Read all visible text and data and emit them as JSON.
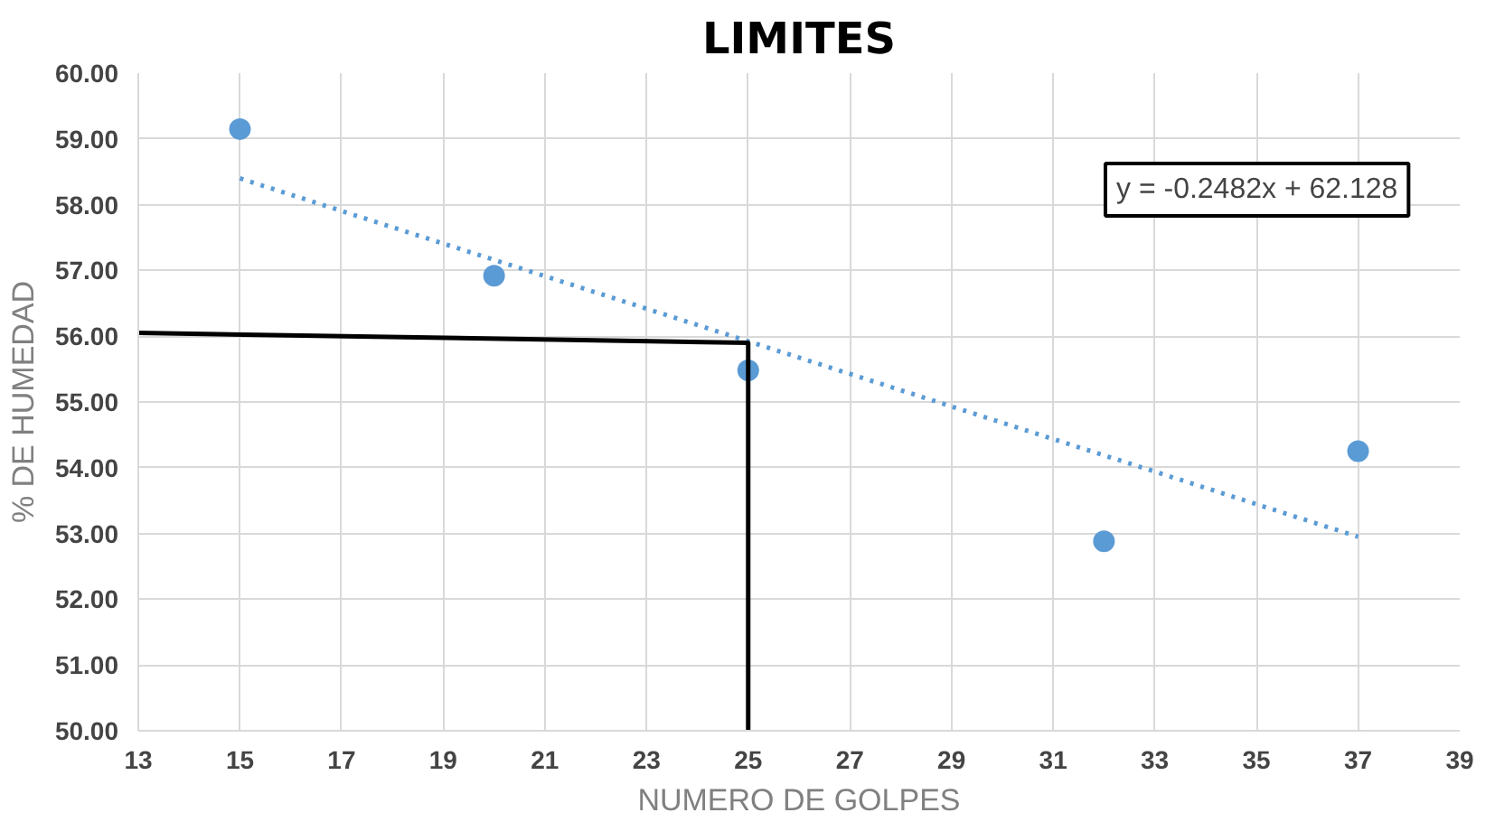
{
  "chart_data": {
    "type": "scatter",
    "title": "LIMITES",
    "xlabel": "NUMERO DE GOLPES",
    "ylabel": "% DE HUMEDAD",
    "xlim": [
      13,
      39
    ],
    "xticks": [
      13,
      15,
      17,
      19,
      21,
      23,
      25,
      27,
      29,
      31,
      33,
      35,
      37,
      39
    ],
    "ylim": [
      50,
      60
    ],
    "yticks": [
      {
        "value": 50,
        "label": "50.00"
      },
      {
        "value": 51,
        "label": "51.00"
      },
      {
        "value": 52,
        "label": "52.00"
      },
      {
        "value": 53,
        "label": "53.00"
      },
      {
        "value": 54,
        "label": "54.00"
      },
      {
        "value": 55,
        "label": "55.00"
      },
      {
        "value": 56,
        "label": "56.00"
      },
      {
        "value": 57,
        "label": "57.00"
      },
      {
        "value": 58,
        "label": "58.00"
      },
      {
        "value": 59,
        "label": "59.00"
      },
      {
        "value": 60,
        "label": "60.00"
      }
    ],
    "grid": true,
    "series": [
      {
        "marker": "circle",
        "color": "#5b9bd5",
        "x": [
          15,
          20,
          25,
          32,
          37
        ],
        "values": [
          59.15,
          56.92,
          55.48,
          52.88,
          54.25
        ]
      },
      {
        "type": "line",
        "marker": "none",
        "line_style": "dotted",
        "color": "#5b9bd5",
        "x": [
          15,
          37
        ],
        "values": [
          58.4,
          52.95
        ]
      },
      {
        "type": "line",
        "marker": "none",
        "line_style": "solid",
        "color": "#000000",
        "x": [
          13,
          25,
          25
        ],
        "values": [
          56.05,
          55.9,
          50
        ]
      }
    ],
    "annotations": [
      "y = -0.2482x + 62.128"
    ]
  }
}
